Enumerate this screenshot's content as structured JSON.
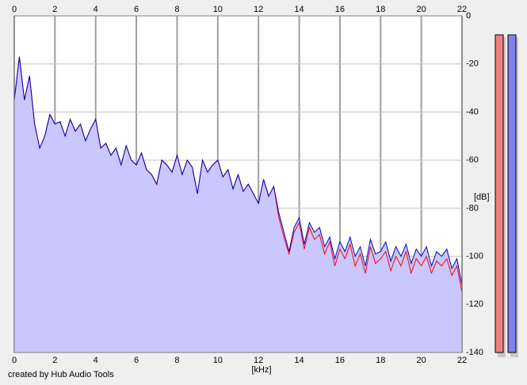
{
  "chart_data": {
    "type": "line",
    "x_label": "[kHz]",
    "y_label": "[dB]",
    "footer": "created by Hub Audio Tools",
    "x": [
      0,
      0.25,
      0.5,
      0.75,
      1,
      1.25,
      1.5,
      1.75,
      2,
      2.25,
      2.5,
      2.75,
      3,
      3.25,
      3.5,
      3.75,
      4,
      4.25,
      4.5,
      4.75,
      5,
      5.25,
      5.5,
      5.75,
      6,
      6.25,
      6.5,
      6.75,
      7,
      7.25,
      7.5,
      7.75,
      8,
      8.25,
      8.5,
      8.75,
      9,
      9.25,
      9.5,
      9.75,
      10,
      10.25,
      10.5,
      10.75,
      11,
      11.25,
      11.5,
      11.75,
      12,
      12.25,
      12.5,
      12.75,
      13,
      13.25,
      13.5,
      13.75,
      14,
      14.25,
      14.5,
      14.75,
      15,
      15.25,
      15.5,
      15.75,
      16,
      16.25,
      16.5,
      16.75,
      17,
      17.25,
      17.5,
      17.75,
      18,
      18.25,
      18.5,
      18.75,
      19,
      19.25,
      19.5,
      19.75,
      20,
      20.25,
      20.5,
      20.75,
      21,
      21.25,
      21.5,
      21.75,
      22
    ],
    "series": [
      {
        "color": "#ff0000",
        "values": [
          -35,
          -17,
          -35,
          -25,
          -45,
          -55,
          -50,
          -41,
          -45,
          -44,
          -50,
          -43,
          -48,
          -45,
          -52,
          -47,
          -43,
          -55,
          -53,
          -58,
          -55,
          -62,
          -54,
          -60,
          -62,
          -57,
          -64,
          -66,
          -70,
          -60,
          -62,
          -65,
          -58,
          -66,
          -60,
          -63,
          -74,
          -60,
          -65,
          -62,
          -60,
          -67,
          -64,
          -72,
          -66,
          -73,
          -70,
          -74,
          -78,
          -68,
          -75,
          -71,
          -84,
          -92,
          -99,
          -90,
          -86,
          -97,
          -88,
          -93,
          -91,
          -99,
          -94,
          -104,
          -97,
          -101,
          -95,
          -104,
          -99,
          -107,
          -96,
          -103,
          -101,
          -98,
          -106,
          -100,
          -104,
          -98,
          -107,
          -101,
          -104,
          -100,
          -107,
          -102,
          -104,
          -101,
          -108,
          -104,
          -115
        ]
      },
      {
        "color": "#0000c0",
        "fill": "#c8c8ff",
        "values": [
          -35,
          -17,
          -35,
          -25,
          -45,
          -55,
          -50,
          -41,
          -45,
          -44,
          -50,
          -43,
          -48,
          -45,
          -52,
          -47,
          -43,
          -55,
          -53,
          -58,
          -55,
          -62,
          -54,
          -60,
          -62,
          -57,
          -64,
          -66,
          -70,
          -60,
          -62,
          -65,
          -58,
          -66,
          -60,
          -63,
          -74,
          -60,
          -65,
          -62,
          -60,
          -67,
          -64,
          -72,
          -66,
          -73,
          -70,
          -74,
          -78,
          -68,
          -75,
          -71,
          -82,
          -90,
          -98,
          -88,
          -84,
          -95,
          -86,
          -90,
          -88,
          -96,
          -92,
          -101,
          -94,
          -98,
          -92,
          -100,
          -96,
          -104,
          -93,
          -99,
          -98,
          -94,
          -102,
          -96,
          -100,
          -95,
          -103,
          -97,
          -100,
          -96,
          -104,
          -98,
          -100,
          -97,
          -105,
          -101,
          -112
        ]
      }
    ],
    "xlim": [
      0,
      22
    ],
    "xticks": [
      0,
      2,
      4,
      6,
      8,
      10,
      12,
      14,
      16,
      18,
      20,
      22
    ],
    "ylim": [
      -140,
      0
    ],
    "yticks": [
      0,
      -20,
      -40,
      -60,
      -80,
      -100,
      -120,
      -140
    ],
    "grid": true
  }
}
